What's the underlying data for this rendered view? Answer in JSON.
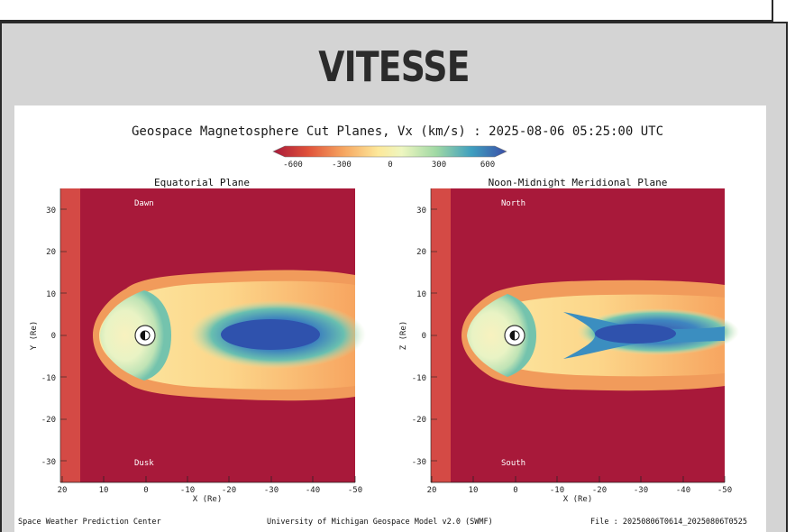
{
  "heading": "VITESSE",
  "figure": {
    "title": "Geospace Magnetosphere Cut Planes, Vx (km/s) : 2025-08-06 05:25:00 UTC",
    "colorbar_ticks": [
      "-600",
      "-300",
      "0",
      "300",
      "600"
    ],
    "left_plot": {
      "title": "Equatorial Plane",
      "ylabel": "Y (Re)",
      "xlabel": "X (Re)",
      "top_label": "Dawn",
      "bottom_label": "Dusk"
    },
    "right_plot": {
      "title": "Noon-Midnight Meridional Plane",
      "ylabel": "Z (Re)",
      "xlabel": "X (Re)",
      "top_label": "North",
      "bottom_label": "South"
    },
    "y_ticks": [
      "30",
      "20",
      "10",
      "0",
      "-10",
      "-20",
      "-30"
    ],
    "x_ticks": [
      "20",
      "10",
      "0",
      "-10",
      "-20",
      "-30",
      "-40",
      "-50"
    ],
    "footer": {
      "left": "Space Weather Prediction Center",
      "center": "University of Michigan Geospace Model v2.0 (SWMF)",
      "right": "File : 20250806T0614_20250806T0525"
    }
  },
  "colors": {
    "panel_bg": "#d4d4d4",
    "solar_wind": "#a8193a",
    "negative_flow": "#2b4fa8",
    "neutral_flow": "#fbf5b6"
  }
}
